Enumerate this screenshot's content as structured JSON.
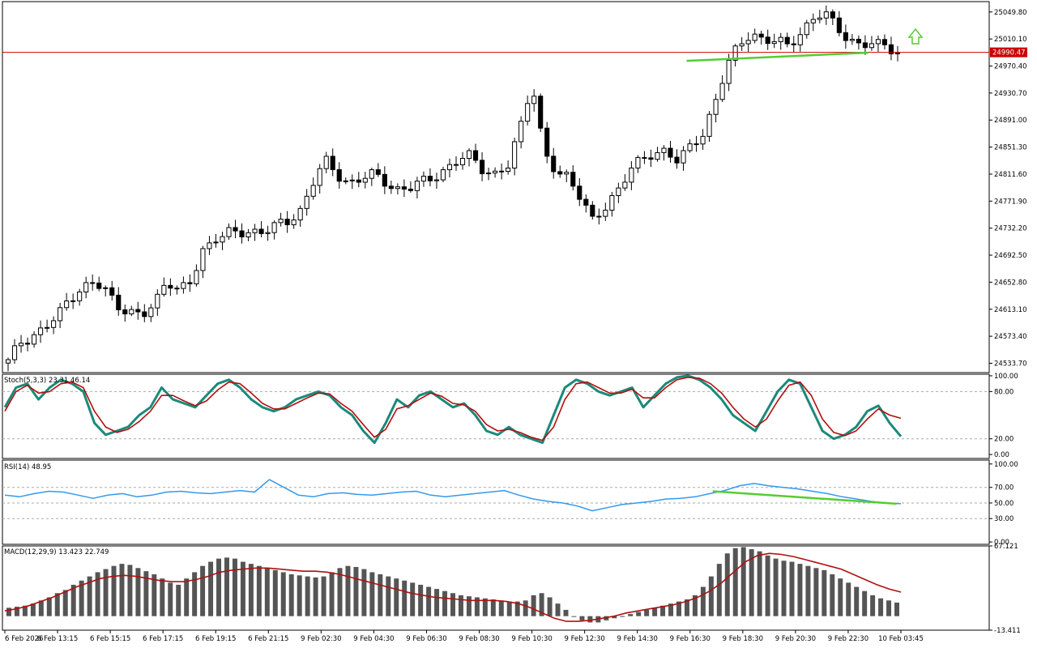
{
  "chart_data": [
    {
      "type": "candlestick",
      "title": "",
      "price_ticks": [
        "25049.80",
        "25010.10",
        "24970.40",
        "24930.70",
        "24891.00",
        "24851.30",
        "24811.60",
        "24771.90",
        "24732.20",
        "24692.50",
        "24652.80",
        "24613.10",
        "24573.40",
        "24533.70"
      ],
      "price_ylim": [
        24520,
        25065
      ],
      "current_price": "24990.47",
      "current_price_value": 24990.47,
      "time_labels": [
        "6 Feb 2026",
        "6 Feb 13:15",
        "6 Feb 15:15",
        "6 Feb 17:15",
        "6 Feb 19:15",
        "6 Feb 21:15",
        "9 Feb 02:30",
        "9 Feb 04:30",
        "9 Feb 06:30",
        "9 Feb 08:30",
        "9 Feb 10:30",
        "9 Feb 12:30",
        "9 Feb 14:30",
        "9 Feb 16:30",
        "9 Feb 18:30",
        "9 Feb 20:30",
        "9 Feb 22:30",
        "10 Feb 03:45"
      ],
      "price_path": [
        24535,
        24565,
        24575,
        24585,
        24600,
        24630,
        24645,
        24650,
        24640,
        24620,
        24610,
        24600,
        24620,
        24660,
        24640,
        24650,
        24700,
        24720,
        24725,
        24722,
        24728,
        24730,
        24735,
        24740,
        24760,
        24800,
        24830,
        24810,
        24800,
        24805,
        24810,
        24800,
        24790,
        24790,
        24800,
        24810,
        24820,
        24830,
        24840,
        24820,
        24810,
        24820,
        24880,
        24950,
        24840,
        24810,
        24810,
        24780,
        24740,
        24760,
        24790,
        24820,
        24830,
        24840,
        24850,
        24830,
        24850,
        24870,
        24920,
        24970,
        25000,
        25020,
        25010,
        25005,
        25000,
        25020,
        25040,
        25045,
        25030,
        25010,
        25000,
        25000,
        25005,
        24990
      ],
      "trendline": {
        "color": "#55cc33",
        "from": [
          24978
        ],
        "to": [
          24990
        ]
      },
      "arrow": {
        "direction": "up",
        "color": "#55cc33"
      }
    },
    {
      "type": "line",
      "label": "Stoch(5,3,3) 23.31 46.14",
      "ticks": [
        "100.00",
        "80.00",
        "20.00",
        "0.00"
      ],
      "ylim": [
        -5,
        102
      ],
      "series": [
        {
          "values": [
            60,
            85,
            90,
            70,
            85,
            95,
            90,
            80,
            40,
            25,
            30,
            35,
            50,
            60,
            85,
            70,
            65,
            60,
            75,
            90,
            95,
            85,
            70,
            60,
            55,
            60,
            70,
            75,
            80,
            75,
            60,
            50,
            30,
            15,
            40,
            70,
            60,
            75,
            80,
            70,
            60,
            65,
            50,
            30,
            25,
            35,
            25,
            20,
            15,
            50,
            85,
            95,
            90,
            80,
            75,
            80,
            85,
            60,
            75,
            90,
            98,
            100,
            95,
            85,
            70,
            50,
            40,
            30,
            55,
            80,
            95,
            90,
            60,
            30,
            20,
            25,
            35,
            55,
            62,
            40,
            23
          ]
        },
        {
          "values": [
            55,
            80,
            88,
            78,
            80,
            90,
            92,
            85,
            55,
            35,
            28,
            32,
            42,
            55,
            75,
            75,
            68,
            62,
            68,
            82,
            92,
            90,
            78,
            65,
            58,
            58,
            65,
            72,
            78,
            77,
            65,
            55,
            38,
            22,
            32,
            58,
            62,
            70,
            78,
            74,
            65,
            63,
            55,
            38,
            30,
            32,
            28,
            22,
            18,
            35,
            70,
            90,
            92,
            85,
            78,
            78,
            83,
            72,
            72,
            85,
            95,
            98,
            97,
            90,
            78,
            60,
            45,
            35,
            45,
            68,
            88,
            92,
            75,
            45,
            28,
            24,
            30,
            45,
            58,
            50,
            46
          ]
        }
      ]
    },
    {
      "type": "line",
      "label": "RSI(14) 48.95",
      "ticks": [
        "100.00",
        "70.00",
        "50.00",
        "30.00",
        "0.00"
      ],
      "ylim": [
        -3,
        105
      ],
      "series": [
        {
          "values": [
            60,
            58,
            62,
            65,
            64,
            60,
            56,
            60,
            62,
            58,
            60,
            64,
            65,
            63,
            62,
            64,
            66,
            64,
            80,
            70,
            60,
            58,
            62,
            63,
            61,
            60,
            62,
            64,
            65,
            60,
            58,
            60,
            62,
            64,
            66,
            60,
            55,
            52,
            50,
            46,
            40,
            44,
            48,
            50,
            52,
            55,
            56,
            58,
            62,
            66,
            72,
            75,
            72,
            70,
            68,
            65,
            62,
            58,
            55,
            52,
            50,
            49
          ]
        },
        {
          "values": []
        }
      ],
      "trendline": {
        "color": "#55cc33",
        "from": [
          65
        ],
        "to": [
          49
        ]
      }
    },
    {
      "type": "bar",
      "label": "MACD(12,29,9) 13.423 22.749",
      "ticks": [
        "67.121",
        "-13.411"
      ],
      "ylim": [
        -13.411,
        67.121
      ],
      "series": [
        {
          "values": [
            8,
            9,
            10,
            12,
            15,
            18,
            22,
            25,
            30,
            34,
            38,
            42,
            45,
            48,
            50,
            49,
            46,
            43,
            40,
            36,
            32,
            30,
            36,
            42,
            48,
            52,
            55,
            56,
            55,
            52,
            50,
            48,
            46,
            44,
            42,
            40,
            39,
            38,
            37,
            38,
            42,
            46,
            48,
            47,
            45,
            42,
            40,
            38,
            36,
            34,
            32,
            30,
            28,
            26,
            24,
            22,
            20,
            19,
            18,
            17,
            16,
            15,
            14,
            14,
            15,
            20,
            22,
            18,
            12,
            6,
            0,
            -4,
            -6,
            -6,
            -4,
            -2,
            0,
            2,
            4,
            6,
            8,
            10,
            12,
            14,
            16,
            20,
            28,
            38,
            50,
            60,
            65,
            66,
            64,
            62,
            58,
            55,
            53,
            52,
            50,
            48,
            46,
            44,
            40,
            36,
            32,
            28,
            24,
            20,
            17,
            15,
            13
          ]
        },
        {
          "values": [
            5,
            7,
            10,
            14,
            18,
            23,
            28,
            32,
            36,
            38,
            39,
            38,
            36,
            34,
            33,
            33,
            35,
            38,
            42,
            44,
            45,
            46,
            46,
            45,
            44,
            43,
            43,
            42,
            40,
            37,
            34,
            31,
            28,
            25,
            22,
            20,
            18,
            17,
            16,
            15,
            15,
            15,
            14,
            12,
            8,
            3,
            -2,
            -5,
            -5,
            -4,
            -2,
            0,
            3,
            5,
            7,
            9,
            11,
            14,
            18,
            24,
            32,
            42,
            52,
            58,
            60,
            59,
            57,
            54,
            51,
            48,
            45,
            40,
            35,
            30,
            26,
            23
          ]
        }
      ]
    }
  ]
}
